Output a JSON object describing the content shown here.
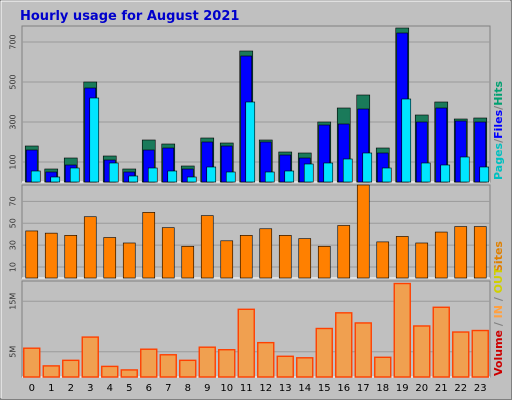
{
  "title": "Hourly usage for August 2021",
  "colors": {
    "background": "#c0c0c0",
    "plot": "#c0c0c0",
    "grid": "#9a9a9a",
    "title": "#0000cc",
    "hits": "#1a7a5a",
    "files": "#0000ff",
    "pages": "#00e5ff",
    "sites": "#ff8000",
    "volume": "#ff4000",
    "in": "#f0a050",
    "out": "#f0e050",
    "label_pages": "#00c0c0",
    "label_files": "#0000ff",
    "label_hits": "#00a070",
    "label_sites": "#e08000",
    "label_volume": "#cc0000",
    "label_in": "#ffa040",
    "label_out": "#d0d000",
    "label_slash": "#808080"
  },
  "chart_data": [
    {
      "type": "bar",
      "categories": [
        "0",
        "1",
        "2",
        "3",
        "4",
        "5",
        "6",
        "7",
        "8",
        "9",
        "10",
        "11",
        "12",
        "13",
        "14",
        "15",
        "16",
        "17",
        "18",
        "19",
        "20",
        "21",
        "22",
        "23"
      ],
      "ylim": [
        0,
        780
      ],
      "yticks": [
        "100",
        "300",
        "500",
        "700"
      ],
      "ytick_values": [
        100,
        300,
        500,
        700
      ],
      "series": [
        {
          "name": "Hits",
          "values": [
            180,
            65,
            120,
            500,
            130,
            65,
            210,
            190,
            80,
            220,
            195,
            655,
            210,
            150,
            145,
            300,
            370,
            435,
            170,
            770,
            335,
            400,
            315,
            320
          ]
        },
        {
          "name": "Files",
          "values": [
            160,
            50,
            85,
            470,
            110,
            50,
            160,
            170,
            65,
            200,
            180,
            630,
            200,
            135,
            120,
            285,
            290,
            365,
            145,
            745,
            300,
            370,
            305,
            300
          ]
        },
        {
          "name": "Pages",
          "values": [
            55,
            25,
            70,
            420,
            95,
            30,
            70,
            55,
            25,
            75,
            50,
            400,
            50,
            55,
            90,
            95,
            115,
            145,
            70,
            415,
            95,
            85,
            125,
            75
          ]
        }
      ],
      "legend_labels": {
        "pages": "Pages",
        "files": "Files",
        "hits": "Hits"
      }
    },
    {
      "type": "bar",
      "categories": [
        "0",
        "1",
        "2",
        "3",
        "4",
        "5",
        "6",
        "7",
        "8",
        "9",
        "10",
        "11",
        "12",
        "13",
        "14",
        "15",
        "16",
        "17",
        "18",
        "19",
        "20",
        "21",
        "22",
        "23"
      ],
      "ylim": [
        0,
        85
      ],
      "yticks": [
        "10",
        "30",
        "50",
        "70"
      ],
      "ytick_values": [
        10,
        30,
        50,
        70
      ],
      "series": [
        {
          "name": "Sites",
          "values": [
            43,
            41,
            39,
            56,
            37,
            32,
            60,
            46,
            29,
            57,
            34,
            39,
            45,
            39,
            36,
            29,
            48,
            85,
            33,
            38,
            32,
            42,
            47,
            47
          ]
        }
      ],
      "legend_labels": {
        "sites": "Sites"
      }
    },
    {
      "type": "bar",
      "categories": [
        "0",
        "1",
        "2",
        "3",
        "4",
        "5",
        "6",
        "7",
        "8",
        "9",
        "10",
        "11",
        "12",
        "13",
        "14",
        "15",
        "16",
        "17",
        "18",
        "19",
        "20",
        "21",
        "22",
        "23"
      ],
      "ylim": [
        0,
        19
      ],
      "yticks": [
        "5M",
        "15M"
      ],
      "ytick_values": [
        5,
        15
      ],
      "series": [
        {
          "name": "Volume",
          "values": [
            5.7,
            2.2,
            3.3,
            7.9,
            2.1,
            1.4,
            5.5,
            4.4,
            3.3,
            5.9,
            5.4,
            13.4,
            6.8,
            4.1,
            3.8,
            9.6,
            12.7,
            10.7,
            3.9,
            18.5,
            10.1,
            13.8,
            8.9,
            9.2
          ]
        }
      ],
      "legend_labels": {
        "volume": "Volume",
        "in": "IN",
        "out": "OUT"
      }
    }
  ]
}
